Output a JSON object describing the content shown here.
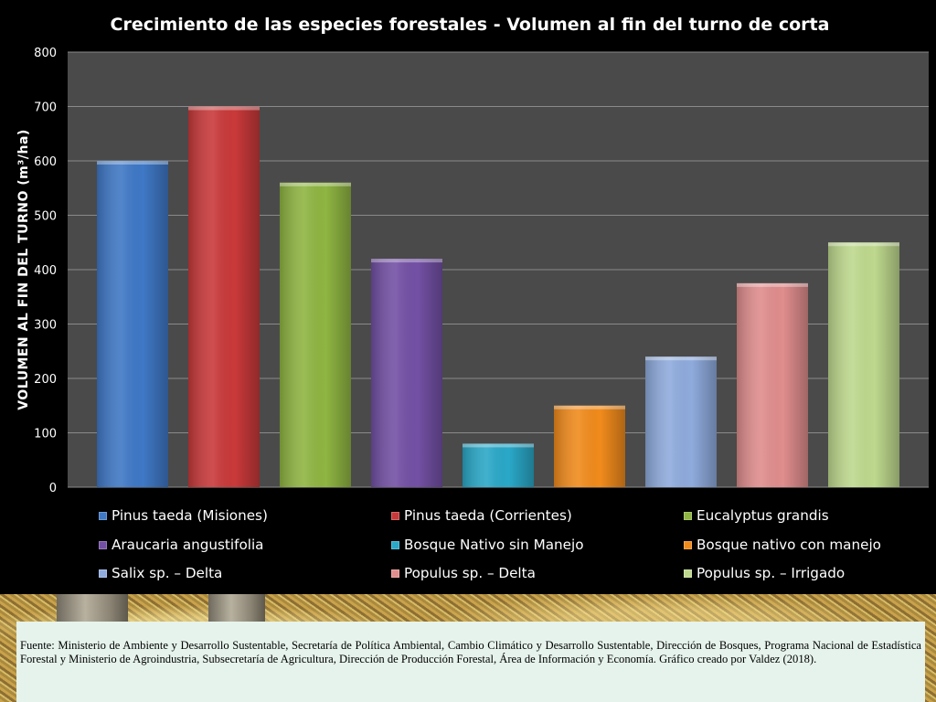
{
  "chart_data": {
    "type": "bar",
    "title": "Crecimiento de las especies forestales - Volumen al fin del turno de corta",
    "ylabel": "VOLUMEN AL FIN DEL TURNO (m³/ha)",
    "xlabel": "",
    "ylim": [
      0,
      800
    ],
    "yticks": [
      "0",
      "100",
      "200",
      "300",
      "400",
      "500",
      "600",
      "700",
      "800"
    ],
    "grid": true,
    "legend_position": "bottom",
    "series": [
      {
        "name": "Pinus taeda (Misiones)",
        "value": 600,
        "color": "#3f78c6"
      },
      {
        "name": "Pinus taeda (Corrientes)",
        "value": 700,
        "color": "#c9393a"
      },
      {
        "name": "Eucalyptus grandis",
        "value": 560,
        "color": "#8fb542"
      },
      {
        "name": "Araucaria angustifolia",
        "value": 420,
        "color": "#7350a5"
      },
      {
        "name": "Bosque Nativo sin Manejo",
        "value": 80,
        "color": "#2aa8c8"
      },
      {
        "name": "Bosque nativo con manejo",
        "value": 150,
        "color": "#f18b1c"
      },
      {
        "name": "Salix sp. – Delta",
        "value": 240,
        "color": "#8fabdd"
      },
      {
        "name": "Populus sp. – Delta",
        "value": 375,
        "color": "#e08d8d"
      },
      {
        "name": "Populus sp. – Irrigado",
        "value": 450,
        "color": "#bed98e"
      }
    ]
  },
  "source_note": "Fuente: Ministerio de Ambiente y Desarrollo Sustentable, Secretaría de Política Ambiental, Cambio Climático y Desarrollo Sustentable, Dirección de Bosques, Programa Nacional de Estadística Forestal y Ministerio de Agroindustria, Subsecretaría de Agricultura, Dirección de Producción Forestal,  Área de Información y Economía. Gráfico creado por Valdez (2018).",
  "colors": {
    "slide_background": "#000000",
    "plot_background": "#4a4a4a",
    "gridline": "#8a8a8a",
    "text": "#ffffff",
    "source_box": "#e6f3ec"
  }
}
